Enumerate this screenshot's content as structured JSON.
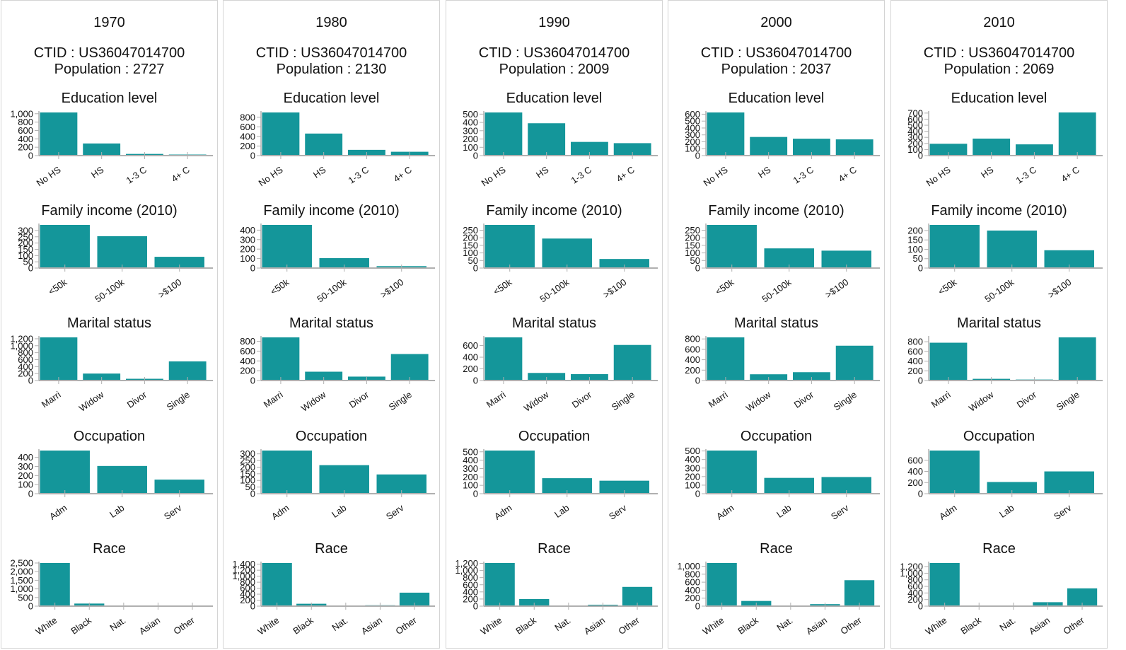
{
  "ctid_prefix": "CTID : ",
  "population_prefix": "Population : ",
  "chart_titles": [
    "Education level",
    "Family income (2010)",
    "Marital status",
    "Occupation",
    "Race"
  ],
  "bar_color": "#14969a",
  "axis_color": "#b0b0b0",
  "panels": [
    {
      "year": "1970",
      "ctid": "US36047014700",
      "population": "2727",
      "ctid_line": "CTID : US36047014700",
      "population_line": "Population : 2727"
    },
    {
      "year": "1980",
      "ctid": "US36047014700",
      "population": "2130",
      "ctid_line": "CTID : US36047014700",
      "population_line": "Population : 2130"
    },
    {
      "year": "1990",
      "ctid": "US36047014700",
      "population": "2009",
      "ctid_line": "CTID : US36047014700",
      "population_line": "Population : 2009"
    },
    {
      "year": "2000",
      "ctid": "US36047014700",
      "population": "2037",
      "ctid_line": "CTID : US36047014700",
      "population_line": "Population : 2037"
    },
    {
      "year": "2010",
      "ctid": "US36047014700",
      "population": "2069",
      "ctid_line": "CTID : US36047014700",
      "population_line": "Population : 2069"
    }
  ],
  "chart_data": [
    {
      "type": "bar",
      "year": "1970",
      "title": "Education level",
      "categories": [
        "No HS",
        "HS",
        "1-3 C",
        "4+ C"
      ],
      "values": [
        1030,
        290,
        40,
        25
      ],
      "ylim": [
        0,
        1030
      ],
      "yticks": [
        0,
        200,
        400,
        600,
        800,
        1000
      ],
      "ytick_labels": [
        "0",
        "200",
        "400",
        "600",
        "800",
        "1,000"
      ]
    },
    {
      "type": "bar",
      "year": "1970",
      "title": "Family income (2010)",
      "categories": [
        "<50k",
        "50-100k",
        ">$100"
      ],
      "values": [
        345,
        255,
        90
      ],
      "ylim": [
        0,
        345
      ],
      "yticks": [
        0,
        50,
        100,
        150,
        200,
        250,
        300
      ],
      "ytick_labels": [
        "0",
        "50",
        "100",
        "150",
        "200",
        "250",
        "300"
      ]
    },
    {
      "type": "bar",
      "year": "1970",
      "title": "Marital status",
      "categories": [
        "Marri",
        "Widow",
        "Divor",
        "Single"
      ],
      "values": [
        1240,
        200,
        50,
        550
      ],
      "ylim": [
        0,
        1240
      ],
      "yticks": [
        0,
        200,
        400,
        600,
        800,
        1000,
        1200
      ],
      "ytick_labels": [
        "0",
        "200",
        "400",
        "600",
        "800",
        "1,000",
        "1,200"
      ]
    },
    {
      "type": "bar",
      "year": "1970",
      "title": "Occupation",
      "categories": [
        "Adm",
        "Lab",
        "Serv"
      ],
      "values": [
        475,
        305,
        155
      ],
      "ylim": [
        0,
        475
      ],
      "yticks": [
        0,
        100,
        200,
        300,
        400
      ],
      "ytick_labels": [
        "0",
        "100",
        "200",
        "300",
        "400"
      ]
    },
    {
      "type": "bar",
      "year": "1970",
      "title": "Race",
      "categories": [
        "White",
        "Black",
        "Nat.",
        "Asian",
        "Other"
      ],
      "values": [
        2500,
        150,
        5,
        10,
        15
      ],
      "ylim": [
        0,
        2500
      ],
      "yticks": [
        0,
        500,
        1000,
        1500,
        2000,
        2500
      ],
      "ytick_labels": [
        "0",
        "500",
        "1,000",
        "1,500",
        "2,000",
        "2,500"
      ]
    },
    {
      "type": "bar",
      "year": "1980",
      "title": "Education level",
      "categories": [
        "No HS",
        "HS",
        "1-3 C",
        "4+ C"
      ],
      "values": [
        900,
        460,
        120,
        80
      ],
      "ylim": [
        0,
        900
      ],
      "yticks": [
        0,
        200,
        400,
        600,
        800
      ],
      "ytick_labels": [
        "0",
        "200",
        "400",
        "600",
        "800"
      ]
    },
    {
      "type": "bar",
      "year": "1980",
      "title": "Family income (2010)",
      "categories": [
        "<50k",
        "50-100k",
        ">$100"
      ],
      "values": [
        455,
        105,
        20
      ],
      "ylim": [
        0,
        455
      ],
      "yticks": [
        0,
        100,
        200,
        300,
        400
      ],
      "ytick_labels": [
        "0",
        "100",
        "200",
        "300",
        "400"
      ]
    },
    {
      "type": "bar",
      "year": "1980",
      "title": "Marital status",
      "categories": [
        "Marri",
        "Widow",
        "Divor",
        "Single"
      ],
      "values": [
        880,
        180,
        80,
        540
      ],
      "ylim": [
        0,
        880
      ],
      "yticks": [
        0,
        200,
        400,
        600,
        800
      ],
      "ytick_labels": [
        "0",
        "200",
        "400",
        "600",
        "800"
      ]
    },
    {
      "type": "bar",
      "year": "1980",
      "title": "Occupation",
      "categories": [
        "Adm",
        "Lab",
        "Serv"
      ],
      "values": [
        325,
        215,
        145
      ],
      "ylim": [
        0,
        325
      ],
      "yticks": [
        0,
        50,
        100,
        150,
        200,
        250,
        300
      ],
      "ytick_labels": [
        "0",
        "50",
        "100",
        "150",
        "200",
        "250",
        "300"
      ]
    },
    {
      "type": "bar",
      "year": "1980",
      "title": "Race",
      "categories": [
        "White",
        "Black",
        "Nat.",
        "Asian",
        "Other"
      ],
      "values": [
        1440,
        80,
        5,
        30,
        450
      ],
      "ylim": [
        0,
        1440
      ],
      "yticks": [
        0,
        200,
        400,
        600,
        800,
        1000,
        1200,
        1400
      ],
      "ytick_labels": [
        "0",
        "200",
        "400",
        "600",
        "800",
        "1,000",
        "1,200",
        "1,400"
      ]
    },
    {
      "type": "bar",
      "year": "1990",
      "title": "Education level",
      "categories": [
        "No HS",
        "HS",
        "1-3 C",
        "4+ C"
      ],
      "values": [
        520,
        390,
        165,
        150
      ],
      "ylim": [
        0,
        520
      ],
      "yticks": [
        0,
        100,
        200,
        300,
        400,
        500
      ],
      "ytick_labels": [
        "0",
        "100",
        "200",
        "300",
        "400",
        "500"
      ]
    },
    {
      "type": "bar",
      "year": "1990",
      "title": "Family income (2010)",
      "categories": [
        "<50k",
        "50-100k",
        ">$100"
      ],
      "values": [
        285,
        195,
        60
      ],
      "ylim": [
        0,
        285
      ],
      "yticks": [
        0,
        50,
        100,
        150,
        200,
        250
      ],
      "ytick_labels": [
        "0",
        "50",
        "100",
        "150",
        "200",
        "250"
      ]
    },
    {
      "type": "bar",
      "year": "1990",
      "title": "Marital status",
      "categories": [
        "Marri",
        "Widow",
        "Divor",
        "Single"
      ],
      "values": [
        740,
        130,
        110,
        610
      ],
      "ylim": [
        0,
        740
      ],
      "yticks": [
        0,
        200,
        400,
        600
      ],
      "ytick_labels": [
        "0",
        "200",
        "400",
        "600"
      ]
    },
    {
      "type": "bar",
      "year": "1990",
      "title": "Occupation",
      "categories": [
        "Adm",
        "Lab",
        "Serv"
      ],
      "values": [
        515,
        185,
        155
      ],
      "ylim": [
        0,
        515
      ],
      "yticks": [
        0,
        100,
        200,
        300,
        400,
        500
      ],
      "ytick_labels": [
        "0",
        "100",
        "200",
        "300",
        "400",
        "500"
      ]
    },
    {
      "type": "bar",
      "year": "1990",
      "title": "Race",
      "categories": [
        "White",
        "Black",
        "Nat.",
        "Asian",
        "Other"
      ],
      "values": [
        1210,
        200,
        5,
        40,
        540
      ],
      "ylim": [
        0,
        1210
      ],
      "yticks": [
        0,
        200,
        400,
        600,
        800,
        1000,
        1200
      ],
      "ytick_labels": [
        "0",
        "200",
        "400",
        "600",
        "800",
        "1,000",
        "1,200"
      ]
    },
    {
      "type": "bar",
      "year": "2000",
      "title": "Education level",
      "categories": [
        "No HS",
        "HS",
        "1-3 C",
        "4+ C"
      ],
      "values": [
        625,
        270,
        245,
        235
      ],
      "ylim": [
        0,
        625
      ],
      "yticks": [
        0,
        100,
        200,
        300,
        400,
        500,
        600
      ],
      "ytick_labels": [
        "0",
        "100",
        "200",
        "300",
        "400",
        "500",
        "600"
      ]
    },
    {
      "type": "bar",
      "year": "2000",
      "title": "Family income (2010)",
      "categories": [
        "<50k",
        "50-100k",
        ">$100"
      ],
      "values": [
        285,
        130,
        115
      ],
      "ylim": [
        0,
        285
      ],
      "yticks": [
        0,
        50,
        100,
        150,
        200,
        250
      ],
      "ytick_labels": [
        "0",
        "50",
        "100",
        "150",
        "200",
        "250"
      ]
    },
    {
      "type": "bar",
      "year": "2000",
      "title": "Marital status",
      "categories": [
        "Marri",
        "Widow",
        "Divor",
        "Single"
      ],
      "values": [
        830,
        120,
        160,
        670
      ],
      "ylim": [
        0,
        830
      ],
      "yticks": [
        0,
        200,
        400,
        600,
        800
      ],
      "ytick_labels": [
        "0",
        "200",
        "400",
        "600",
        "800"
      ]
    },
    {
      "type": "bar",
      "year": "2000",
      "title": "Occupation",
      "categories": [
        "Adm",
        "Lab",
        "Serv"
      ],
      "values": [
        505,
        185,
        195
      ],
      "ylim": [
        0,
        505
      ],
      "yticks": [
        0,
        100,
        200,
        300,
        400,
        500
      ],
      "ytick_labels": [
        "0",
        "100",
        "200",
        "300",
        "400",
        "500"
      ]
    },
    {
      "type": "bar",
      "year": "2000",
      "title": "Race",
      "categories": [
        "White",
        "Black",
        "Nat.",
        "Asian",
        "Other"
      ],
      "values": [
        1080,
        130,
        5,
        50,
        650
      ],
      "ylim": [
        0,
        1080
      ],
      "yticks": [
        0,
        200,
        400,
        600,
        800,
        1000
      ],
      "ytick_labels": [
        "0",
        "200",
        "400",
        "600",
        "800",
        "1,000"
      ]
    },
    {
      "type": "bar",
      "year": "2010",
      "title": "Education level",
      "categories": [
        "No HS",
        "HS",
        "1-3 C",
        "4+ C"
      ],
      "values": [
        195,
        280,
        185,
        710
      ],
      "ylim": [
        0,
        710
      ],
      "yticks": [
        0,
        100,
        200,
        300,
        400,
        500,
        600,
        700
      ],
      "ytick_labels": [
        "0",
        "100",
        "200",
        "300",
        "400",
        "500",
        "600",
        "700"
      ]
    },
    {
      "type": "bar",
      "year": "2010",
      "title": "Family income (2010)",
      "categories": [
        "<50k",
        "50-100k",
        ">$100"
      ],
      "values": [
        230,
        200,
        95
      ],
      "ylim": [
        0,
        230
      ],
      "yticks": [
        0,
        50,
        100,
        150,
        200
      ],
      "ytick_labels": [
        "0",
        "50",
        "100",
        "150",
        "200"
      ]
    },
    {
      "type": "bar",
      "year": "2010",
      "title": "Marital status",
      "categories": [
        "Marri",
        "Widow",
        "Divor",
        "Single"
      ],
      "values": [
        780,
        35,
        20,
        890
      ],
      "ylim": [
        0,
        890
      ],
      "yticks": [
        0,
        200,
        400,
        600,
        800
      ],
      "ytick_labels": [
        "0",
        "200",
        "400",
        "600",
        "800"
      ]
    },
    {
      "type": "bar",
      "year": "2010",
      "title": "Occupation",
      "categories": [
        "Adm",
        "Lab",
        "Serv"
      ],
      "values": [
        775,
        210,
        400
      ],
      "ylim": [
        0,
        775
      ],
      "yticks": [
        0,
        200,
        400,
        600
      ],
      "ytick_labels": [
        "0",
        "200",
        "400",
        "600"
      ]
    },
    {
      "type": "bar",
      "year": "2010",
      "title": "Race",
      "categories": [
        "White",
        "Black",
        "Nat.",
        "Asian",
        "Other"
      ],
      "values": [
        1310,
        15,
        5,
        120,
        540
      ],
      "ylim": [
        0,
        1310
      ],
      "yticks": [
        0,
        200,
        400,
        600,
        800,
        1000,
        1200
      ],
      "ytick_labels": [
        "0",
        "200",
        "400",
        "600",
        "800",
        "1,000",
        "1,200"
      ]
    }
  ]
}
